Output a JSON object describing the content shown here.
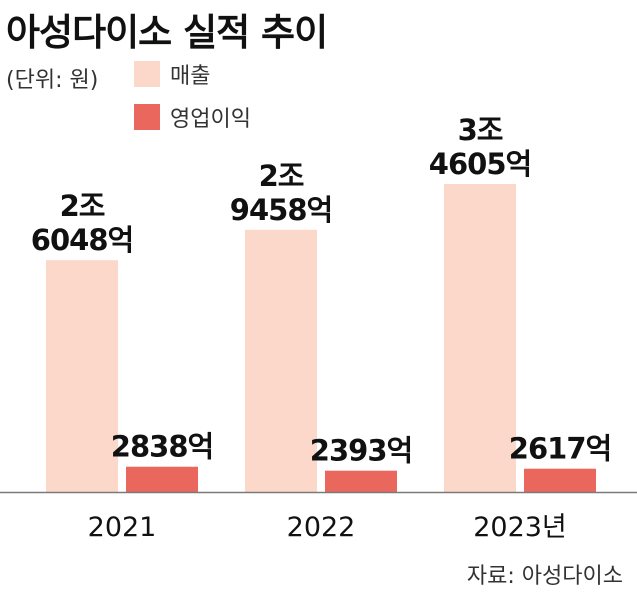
{
  "title": "아성다이소 실적 추이",
  "unit_label": "(단위: 원)",
  "source": "자료: 아성다이소",
  "colors": {
    "revenue": "#fcd8cb",
    "operating_profit": "#e9675d",
    "axis": "#7a7a7a"
  },
  "chart_data": {
    "type": "bar",
    "title": "아성다이소 실적 추이",
    "xlabel": "",
    "ylabel": "",
    "unit": "원",
    "categories": [
      "2021",
      "2022",
      "2023년"
    ],
    "series": [
      {
        "name": "매출",
        "values": [
          2604800000000,
          2945800000000,
          3460500000000
        ],
        "labels": [
          [
            "2조",
            "6048억"
          ],
          [
            "2조",
            "9458억"
          ],
          [
            "3조",
            "4605억"
          ]
        ]
      },
      {
        "name": "영업이익",
        "values": [
          283800000000,
          239300000000,
          261700000000
        ],
        "labels": [
          [
            "2838억"
          ],
          [
            "2393억"
          ],
          [
            "2617억"
          ]
        ]
      }
    ],
    "ylim": [
      0,
      3460500000000
    ],
    "legend": "top-left",
    "grid": false
  }
}
